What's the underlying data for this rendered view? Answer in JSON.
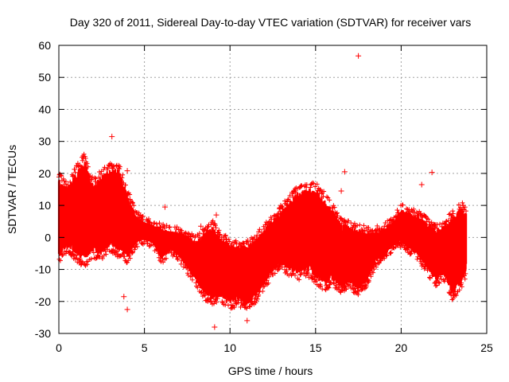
{
  "chart_data": {
    "type": "scatter",
    "title": "Day 320 of 2011, Sidereal Day-to-day VTEC variation (SDTVAR) for receiver vars",
    "xlabel": "GPS time / hours",
    "ylabel": "SDTVAR / TECUs",
    "xlim": [
      0,
      25
    ],
    "ylim": [
      -30,
      60
    ],
    "xticks": [
      0,
      5,
      10,
      15,
      20,
      25
    ],
    "yticks": [
      -30,
      -20,
      -10,
      0,
      10,
      20,
      30,
      40,
      50,
      60
    ],
    "grid": true,
    "legend": "none",
    "series": [
      {
        "name": "SDTVAR",
        "marker": "+",
        "color": "#ff0000",
        "envelope": {
          "x": [
            0,
            0.5,
            1,
            1.5,
            2,
            2.5,
            3,
            3.5,
            4,
            4.5,
            5,
            5.5,
            6,
            6.5,
            7,
            7.5,
            8,
            8.5,
            9,
            9.5,
            10,
            10.5,
            11,
            11.5,
            12,
            12.5,
            13,
            13.5,
            14,
            14.5,
            15,
            15.5,
            16,
            16.5,
            17,
            17.5,
            18,
            18.5,
            19,
            19.5,
            20,
            20.5,
            21,
            21.5,
            22,
            22.5,
            23,
            23.5,
            23.8
          ],
          "upper": [
            19,
            16,
            21,
            25,
            17,
            20,
            22,
            22,
            14,
            7,
            5,
            4,
            3,
            2,
            2,
            1,
            -1,
            2,
            4,
            0,
            -1,
            -2,
            -2,
            0,
            3,
            6,
            9,
            12,
            15,
            16,
            16,
            13,
            9,
            5,
            4,
            3,
            2,
            2,
            3,
            5,
            9,
            8,
            7,
            5,
            3,
            4,
            7,
            10,
            8
          ],
          "lower": [
            -7,
            -3,
            -6,
            -8,
            -5,
            -6,
            -3,
            -5,
            -7,
            -2,
            -1,
            -2,
            -7,
            -4,
            -6,
            -10,
            -14,
            -18,
            -20,
            -19,
            -21,
            -20,
            -22,
            -19,
            -15,
            -11,
            -9,
            -11,
            -12,
            -11,
            -13,
            -16,
            -14,
            -16,
            -15,
            -17,
            -14,
            -8,
            -6,
            -3,
            -2,
            -4,
            -6,
            -10,
            -14,
            -12,
            -19,
            -15,
            -11
          ]
        },
        "outliers": [
          {
            "x": 17.5,
            "y": 56.7
          },
          {
            "x": 16.7,
            "y": 20.5
          },
          {
            "x": 16.5,
            "y": 14.5
          },
          {
            "x": 21.8,
            "y": 20.3
          },
          {
            "x": 21.2,
            "y": 16.5
          },
          {
            "x": 3.1,
            "y": 31.5
          },
          {
            "x": 4.0,
            "y": 20.8
          },
          {
            "x": 4.0,
            "y": -22.5
          },
          {
            "x": 3.8,
            "y": -18.5
          },
          {
            "x": 6.2,
            "y": 9.5
          },
          {
            "x": 9.1,
            "y": -28.0
          },
          {
            "x": 11.0,
            "y": -26.0
          },
          {
            "x": 8.3,
            "y": 3.5
          },
          {
            "x": 9.2,
            "y": 7.0
          }
        ]
      }
    ]
  }
}
